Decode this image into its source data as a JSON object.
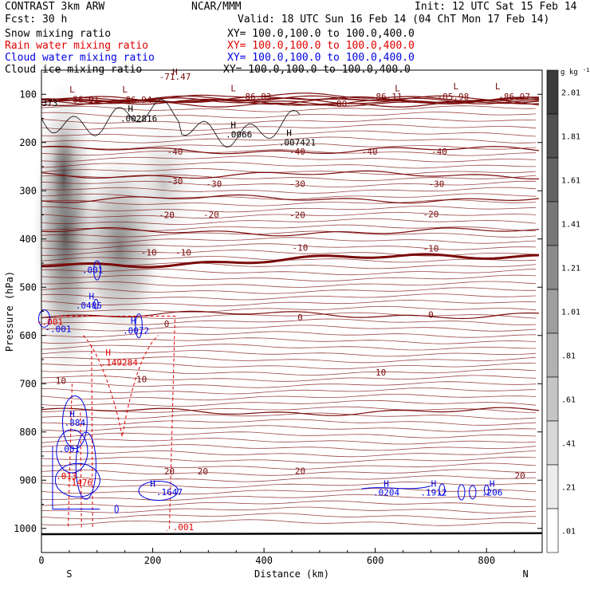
{
  "header": {
    "title_left": "CONTRAST  3km ARW",
    "forecast": "Fcst:   30 h",
    "center": "NCAR/MMM",
    "init": "Init: 12 UTC Sat 15 Feb 14",
    "valid": "Valid: 18 UTC Sun 16 Feb 14 (04 ChT Mon 17 Feb 14)"
  },
  "fields": [
    {
      "name": "Snow mixing ratio",
      "xy": "XY= 100.0,100.0 to 100.0,400.0",
      "color": "#000000"
    },
    {
      "name": "Rain water mixing ratio",
      "xy": "XY= 100.0,100.0 to 100.0,400.0",
      "color": "#e00000"
    },
    {
      "name": "Cloud water mixing ratio",
      "xy": "XY= 100.0,100.0 to 100.0,400.0",
      "color": "#0000e0"
    },
    {
      "name": "Cloud ice mixing ratio",
      "xy": "XY= 100.0,100.0 to 100.0,400.0",
      "color": "#000000"
    }
  ],
  "colors": {
    "temperature": "#7a0a0a",
    "rain": "#e00000",
    "cloud": "#0000e0",
    "ice": "#000000"
  },
  "chart_data": {
    "type": "contour",
    "xlabel": "Distance (km)",
    "ylabel": "Pressure (hPa)",
    "xlim": [
      0,
      900
    ],
    "ylim": [
      1050,
      50
    ],
    "x_ticks": [
      0,
      200,
      400,
      600,
      800
    ],
    "x_tick_labels": [
      "0",
      "200",
      "400",
      "600",
      "800"
    ],
    "y_ticks": [
      100,
      200,
      300,
      400,
      500,
      600,
      700,
      800,
      900,
      1000
    ],
    "y_tick_labels": [
      "100",
      "200",
      "300",
      "400",
      "500",
      "600",
      "700",
      "800",
      "900",
      "1000"
    ],
    "x_end_labels": {
      "left": "S",
      "right": "N"
    },
    "colorbar": {
      "unit": "g kg",
      "unit_exp": "-1",
      "labels": [
        "2.01",
        "1.81",
        "1.61",
        "1.41",
        "1.21",
        "1.01",
        ".81",
        ".61",
        ".41",
        ".21",
        ".01"
      ],
      "levels": [
        2.01,
        1.81,
        1.61,
        1.41,
        1.21,
        1.01,
        0.81,
        0.61,
        0.41,
        0.21,
        0.01
      ]
    },
    "temperature_contours": [
      {
        "value": -71.47,
        "p": 106
      },
      {
        "value": -86.91,
        "p": 116
      },
      {
        "value": -86.94,
        "p": 118
      },
      {
        "value": -86.83,
        "p": 112
      },
      {
        "value": -80,
        "p": 118
      },
      {
        "value": -86.11,
        "p": 112
      },
      {
        "value": -85.98,
        "p": 112
      },
      {
        "value": -86.97,
        "p": 112
      },
      {
        "value": -40,
        "p": 216
      },
      {
        "value": -30,
        "p": 267
      },
      {
        "value": -20,
        "p": 317
      },
      {
        "value": -10,
        "p": 385
      },
      {
        "value": 0,
        "p": 455
      },
      {
        "value": 10,
        "p": 557
      },
      {
        "value": 20,
        "p": 758
      }
    ],
    "temperature_labels": [
      {
        "text": "-71.47",
        "x": 240,
        "p": 70
      },
      {
        "text": "-86.91",
        "x": 75,
        "p": 117
      },
      {
        "text": "-86.94",
        "x": 170,
        "p": 118
      },
      {
        "text": "-86.83",
        "x": 385,
        "p": 111
      },
      {
        "text": "-80",
        "x": 535,
        "p": 126
      },
      {
        "text": "-86.11",
        "x": 620,
        "p": 111
      },
      {
        "text": "-85.98",
        "x": 740,
        "p": 111
      },
      {
        "text": "-86.97",
        "x": 850,
        "p": 111
      },
      {
        "text": "-40",
        "x": 240,
        "p": 225
      },
      {
        "text": "-40",
        "x": 460,
        "p": 225
      },
      {
        "text": "-40",
        "x": 590,
        "p": 225
      },
      {
        "text": "-40",
        "x": 715,
        "p": 225
      },
      {
        "text": "-30",
        "x": 240,
        "p": 286
      },
      {
        "text": "-30",
        "x": 310,
        "p": 292
      },
      {
        "text": "-30",
        "x": 460,
        "p": 292
      },
      {
        "text": "-30",
        "x": 710,
        "p": 292
      },
      {
        "text": "-20",
        "x": 225,
        "p": 357
      },
      {
        "text": "-20",
        "x": 305,
        "p": 356
      },
      {
        "text": "-20",
        "x": 460,
        "p": 357
      },
      {
        "text": "-20",
        "x": 700,
        "p": 355
      },
      {
        "text": "-10",
        "x": 193,
        "p": 434
      },
      {
        "text": "-10",
        "x": 255,
        "p": 434
      },
      {
        "text": "-10",
        "x": 465,
        "p": 424
      },
      {
        "text": "-10",
        "x": 700,
        "p": 426
      },
      {
        "text": "0",
        "x": 225,
        "p": 582
      },
      {
        "text": "0",
        "x": 465,
        "p": 569
      },
      {
        "text": "0",
        "x": 700,
        "p": 563
      },
      {
        "text": "10",
        "x": 35,
        "p": 700
      },
      {
        "text": "10",
        "x": 180,
        "p": 697
      },
      {
        "text": "10",
        "x": 610,
        "p": 683
      },
      {
        "text": "20",
        "x": 230,
        "p": 888
      },
      {
        "text": "20",
        "x": 290,
        "p": 888
      },
      {
        "text": "20",
        "x": 465,
        "p": 887
      },
      {
        "text": "20",
        "x": 860,
        "p": 897
      }
    ],
    "maxima_labels": [
      {
        "text": "373",
        "x": 15,
        "p": 124,
        "color": "ice"
      },
      {
        "text": ".002816",
        "x": 175,
        "p": 157,
        "color": "ice"
      },
      {
        "text": ".0066",
        "x": 355,
        "p": 190,
        "color": "ice"
      },
      {
        "text": ".007421",
        "x": 460,
        "p": 206,
        "color": "ice"
      },
      {
        "text": ".001",
        "x": 92,
        "p": 471,
        "color": "cloud"
      },
      {
        "text": ".0485",
        "x": 85,
        "p": 544,
        "color": "cloud"
      },
      {
        "text": ".0072",
        "x": 170,
        "p": 596,
        "color": "cloud"
      },
      {
        "text": "-.001",
        "x": 30,
        "p": 593,
        "color": "cloud"
      },
      {
        "text": "-.001",
        "x": 15,
        "p": 578,
        "color": "rain"
      },
      {
        "text": ".149284",
        "x": 140,
        "p": 662,
        "color": "rain"
      },
      {
        "text": ".884",
        "x": 60,
        "p": 787,
        "color": "cloud"
      },
      {
        "text": ".001",
        "x": 50,
        "p": 842,
        "color": "cloud"
      },
      {
        "text": ".013",
        "x": 45,
        "p": 898,
        "color": "rain"
      },
      {
        "text": ".1476",
        "x": 68,
        "p": 911,
        "color": "rain"
      },
      {
        "text": ".1647",
        "x": 230,
        "p": 931,
        "color": "cloud"
      },
      {
        "text": ".001",
        "x": 255,
        "p": 1004,
        "color": "rain"
      },
      {
        "text": ".0204",
        "x": 620,
        "p": 932,
        "color": "cloud"
      },
      {
        "text": ".1912",
        "x": 705,
        "p": 932,
        "color": "cloud"
      },
      {
        "text": ".206",
        "x": 810,
        "p": 932,
        "color": "cloud"
      }
    ],
    "extrema_markers": [
      {
        "text": "H",
        "x": 240,
        "p": 60,
        "color": "temperature"
      },
      {
        "text": "L",
        "x": 55,
        "p": 96,
        "color": "temperature"
      },
      {
        "text": "L",
        "x": 150,
        "p": 96,
        "color": "temperature"
      },
      {
        "text": "L",
        "x": 345,
        "p": 94,
        "color": "temperature"
      },
      {
        "text": "L",
        "x": 640,
        "p": 94,
        "color": "temperature"
      },
      {
        "text": "L",
        "x": 745,
        "p": 90,
        "color": "temperature"
      },
      {
        "text": "L",
        "x": 820,
        "p": 90,
        "color": "temperature"
      },
      {
        "text": "H",
        "x": 160,
        "p": 136,
        "color": "ice"
      },
      {
        "text": "H",
        "x": 345,
        "p": 170,
        "color": "ice"
      },
      {
        "text": "H",
        "x": 445,
        "p": 186,
        "color": "ice"
      },
      {
        "text": "H",
        "x": 90,
        "p": 525,
        "color": "cloud"
      },
      {
        "text": "H",
        "x": 165,
        "p": 576,
        "color": "cloud"
      },
      {
        "text": "H",
        "x": 120,
        "p": 642,
        "color": "rain"
      },
      {
        "text": "H",
        "x": 55,
        "p": 769,
        "color": "cloud"
      },
      {
        "text": "H",
        "x": 200,
        "p": 914,
        "color": "cloud"
      },
      {
        "text": "H",
        "x": 620,
        "p": 914,
        "color": "cloud"
      },
      {
        "text": "H",
        "x": 705,
        "p": 914,
        "color": "cloud"
      },
      {
        "text": "H",
        "x": 810,
        "p": 914,
        "color": "cloud"
      }
    ]
  }
}
